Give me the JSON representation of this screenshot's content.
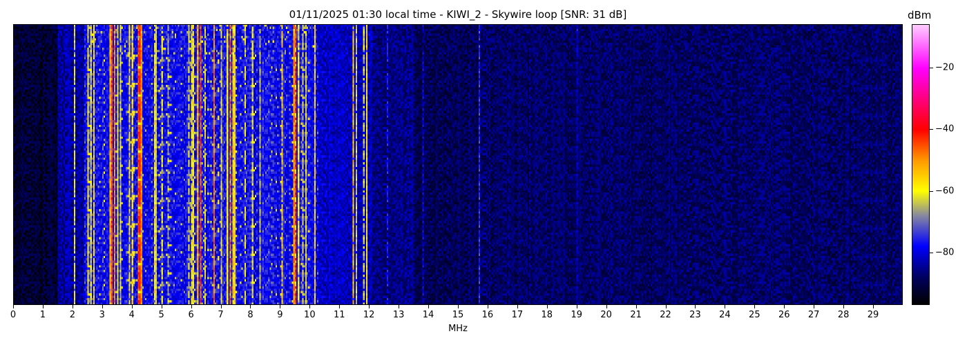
{
  "chart_data": {
    "type": "heatmap",
    "title": "01/11/2025 01:30 local time - KIWI_2 - Skywire loop [SNR: 31 dB]",
    "xlabel": "MHz",
    "xlim": [
      0,
      30
    ],
    "x_ticks": [
      "0",
      "1",
      "2",
      "3",
      "4",
      "5",
      "6",
      "7",
      "8",
      "9",
      "10",
      "11",
      "12",
      "13",
      "14",
      "15",
      "16",
      "17",
      "18",
      "19",
      "20",
      "21",
      "22",
      "23",
      "24",
      "25",
      "26",
      "27",
      "28",
      "29"
    ],
    "colorbar": {
      "label": "dBm",
      "range": [
        -97,
        -6
      ],
      "ticks": [
        "-20",
        "-40",
        "-60",
        "-80"
      ],
      "tick_values": [
        -20,
        -40,
        -60,
        -80
      ],
      "colormap": [
        [
          "#000000",
          -97
        ],
        [
          "#000060",
          -88
        ],
        [
          "#0000ff",
          -78
        ],
        [
          "#8888a0",
          -68
        ],
        [
          "#ffff00",
          -60
        ],
        [
          "#ff9900",
          -50
        ],
        [
          "#ff0000",
          -40
        ],
        [
          "#ff00ff",
          -20
        ],
        [
          "#ffccff",
          -6
        ]
      ]
    },
    "noise_floor_dBm": [
      [
        0,
        1.5,
        -92
      ],
      [
        1.5,
        2.4,
        -84
      ],
      [
        2.4,
        10.3,
        -78
      ],
      [
        10.3,
        12.1,
        -82
      ],
      [
        12.1,
        13.5,
        -86
      ],
      [
        13.5,
        15.7,
        -89
      ],
      [
        15.7,
        30,
        -88
      ]
    ],
    "signals_MHz_dBm": [
      [
        2.05,
        -62
      ],
      [
        2.55,
        -60
      ],
      [
        2.6,
        -62
      ],
      [
        2.7,
        -60
      ],
      [
        3.25,
        -55
      ],
      [
        3.3,
        -45
      ],
      [
        3.4,
        -48
      ],
      [
        3.5,
        -60
      ],
      [
        3.6,
        -62
      ],
      [
        3.9,
        -60
      ],
      [
        4.0,
        -58
      ],
      [
        4.2,
        -45
      ],
      [
        4.25,
        -42
      ],
      [
        4.3,
        -50
      ],
      [
        4.75,
        -58
      ],
      [
        4.85,
        -62
      ],
      [
        5.0,
        -62
      ],
      [
        5.2,
        -64
      ],
      [
        5.9,
        -62
      ],
      [
        6.0,
        -60
      ],
      [
        6.1,
        -58
      ],
      [
        6.2,
        -52
      ],
      [
        6.3,
        -55
      ],
      [
        6.35,
        -45
      ],
      [
        6.45,
        -60
      ],
      [
        6.75,
        -48
      ],
      [
        7.0,
        -62
      ],
      [
        7.2,
        -58
      ],
      [
        7.3,
        -45
      ],
      [
        7.4,
        -55
      ],
      [
        7.45,
        -58
      ],
      [
        7.8,
        -62
      ],
      [
        8.1,
        -62
      ],
      [
        8.3,
        -66
      ],
      [
        9.05,
        -58
      ],
      [
        9.45,
        -50
      ],
      [
        9.5,
        -42
      ],
      [
        9.6,
        -60
      ],
      [
        9.75,
        -62
      ],
      [
        9.85,
        -64
      ],
      [
        10.15,
        -58
      ],
      [
        11.45,
        -56
      ],
      [
        11.55,
        -62
      ],
      [
        11.8,
        -64
      ],
      [
        11.9,
        -58
      ],
      [
        12.6,
        -78
      ],
      [
        13.8,
        -80
      ],
      [
        15.7,
        -75
      ],
      [
        19.0,
        -80
      ]
    ]
  }
}
